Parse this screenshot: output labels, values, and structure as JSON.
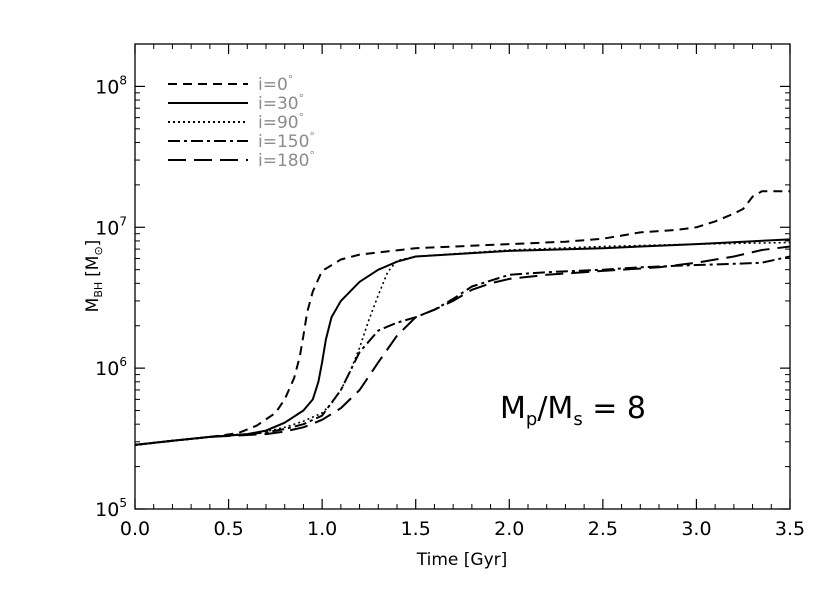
{
  "chart_data": {
    "type": "line",
    "xlabel": "Time [Gyr]",
    "ylabel": "M_BH [M⊙]",
    "xlabel_text": "Time [Gyr]",
    "ylabel_main": "M",
    "ylabel_sub": "BH",
    "ylabel_unit_open": "[M",
    "ylabel_unit_sym": "⊙",
    "ylabel_unit_close": "]",
    "yscale": "log",
    "xlim": [
      0.0,
      3.5
    ],
    "ylim": [
      100000,
      200000000
    ],
    "x_ticks": [
      0.0,
      0.5,
      1.0,
      1.5,
      2.0,
      2.5,
      3.0,
      3.5
    ],
    "x_tick_labels": [
      "0.0",
      "0.5",
      "1.0",
      "1.5",
      "2.0",
      "2.5",
      "3.0",
      "3.5"
    ],
    "y_ticks": [
      {
        "value": 100000,
        "base": "10",
        "exp": "5"
      },
      {
        "value": 1000000,
        "base": "10",
        "exp": "6"
      },
      {
        "value": 10000000,
        "base": "10",
        "exp": "7"
      },
      {
        "value": 100000000,
        "base": "10",
        "exp": "8"
      }
    ],
    "legend_placement": "top-left",
    "annotation": {
      "text": "M_p/M_s = 8",
      "main": "M",
      "sub1": "p",
      "slash": "/M",
      "sub2": "s",
      "rest": " = 8"
    },
    "series": [
      {
        "name": "i=0°",
        "label_main": "i=0",
        "label_deg": "°",
        "style": "dashed",
        "x": [
          0.0,
          0.2,
          0.4,
          0.55,
          0.65,
          0.75,
          0.8,
          0.85,
          0.88,
          0.9,
          0.92,
          0.95,
          1.0,
          1.1,
          1.2,
          1.5,
          2.0,
          2.3,
          2.5,
          2.7,
          2.9,
          3.0,
          3.1,
          3.2,
          3.25,
          3.3,
          3.35,
          3.5
        ],
        "y": [
          285000,
          305000,
          325000,
          345000,
          390000,
          480000,
          600000,
          850000,
          1200000,
          1700000,
          2500000,
          3500000,
          4900000,
          5900000,
          6400000,
          7100000,
          7600000,
          7900000,
          8300000,
          9200000,
          9600000,
          10000000,
          11000000,
          12500000,
          13500000,
          16500000,
          18000000,
          18000000
        ]
      },
      {
        "name": "i=30°",
        "label_main": "i=30",
        "label_deg": "°",
        "style": "solid",
        "x": [
          0.0,
          0.2,
          0.4,
          0.6,
          0.7,
          0.8,
          0.9,
          0.95,
          0.98,
          1.0,
          1.02,
          1.05,
          1.1,
          1.2,
          1.3,
          1.4,
          1.5,
          2.0,
          2.5,
          3.0,
          3.5
        ],
        "y": [
          285000,
          305000,
          325000,
          340000,
          360000,
          410000,
          500000,
          600000,
          800000,
          1100000,
          1600000,
          2300000,
          3000000,
          4100000,
          5000000,
          5700000,
          6200000,
          6800000,
          7100000,
          7600000,
          8200000
        ]
      },
      {
        "name": "i=90°",
        "label_main": "i=90",
        "label_deg": "°",
        "style": "dotted",
        "x": [
          0.0,
          0.2,
          0.4,
          0.6,
          0.7,
          0.8,
          0.9,
          1.0,
          1.05,
          1.1,
          1.15,
          1.2,
          1.25,
          1.3,
          1.35,
          1.4,
          1.5,
          2.0,
          2.5,
          3.0,
          3.5
        ],
        "y": [
          285000,
          305000,
          325000,
          340000,
          355000,
          380000,
          420000,
          480000,
          560000,
          700000,
          950000,
          1400000,
          2200000,
          3300000,
          4800000,
          5800000,
          6200000,
          6900000,
          7300000,
          7600000,
          7800000
        ]
      },
      {
        "name": "i=150°",
        "label_main": "i=150",
        "label_deg": "°",
        "style": "dashdot",
        "x": [
          0.0,
          0.2,
          0.4,
          0.6,
          0.7,
          0.8,
          0.9,
          1.0,
          1.1,
          1.2,
          1.3,
          1.4,
          1.5,
          1.6,
          1.7,
          1.8,
          2.0,
          2.2,
          2.5,
          2.7,
          3.0,
          3.2,
          3.35,
          3.5
        ],
        "y": [
          285000,
          305000,
          325000,
          340000,
          350000,
          370000,
          400000,
          460000,
          700000,
          1300000,
          1850000,
          2100000,
          2300000,
          2600000,
          3100000,
          3800000,
          4600000,
          4800000,
          5000000,
          5200000,
          5400000,
          5500000,
          5600000,
          6200000
        ]
      },
      {
        "name": "i=180°",
        "label_main": "i=180",
        "label_deg": "°",
        "style": "longdash",
        "x": [
          0.0,
          0.2,
          0.4,
          0.6,
          0.7,
          0.8,
          0.9,
          1.0,
          1.1,
          1.2,
          1.3,
          1.4,
          1.5,
          1.6,
          1.7,
          1.8,
          1.9,
          2.0,
          2.2,
          2.5,
          2.8,
          3.0,
          3.2,
          3.35,
          3.5
        ],
        "y": [
          285000,
          305000,
          325000,
          335000,
          340000,
          355000,
          380000,
          430000,
          520000,
          700000,
          1100000,
          1700000,
          2300000,
          2600000,
          3000000,
          3600000,
          4000000,
          4300000,
          4600000,
          4900000,
          5200000,
          5600000,
          6200000,
          6900000,
          7300000
        ]
      }
    ]
  }
}
